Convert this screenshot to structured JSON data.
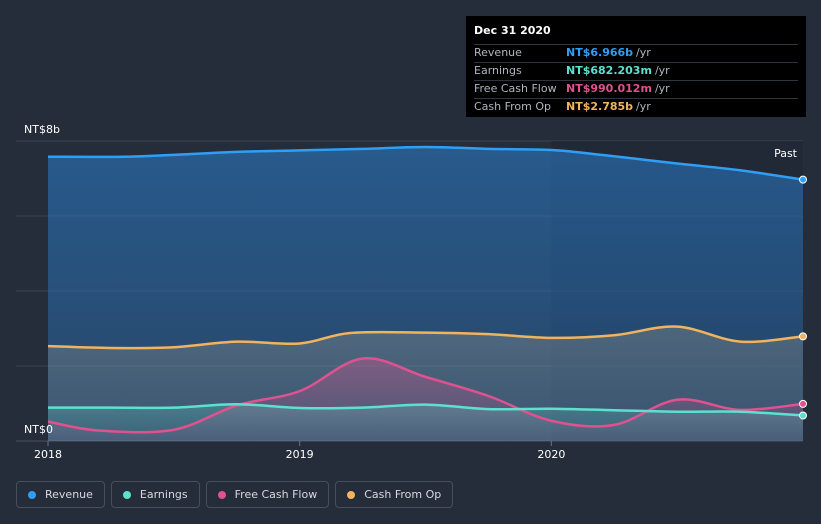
{
  "tooltip": {
    "date": "Dec 31 2020",
    "rows": [
      {
        "label": "Revenue",
        "value": "NT$6.966b",
        "unit": "/yr",
        "color": "#2f9ff5"
      },
      {
        "label": "Earnings",
        "value": "NT$682.203m",
        "unit": "/yr",
        "color": "#5ce1cf"
      },
      {
        "label": "Free Cash Flow",
        "value": "NT$990.012m",
        "unit": "/yr",
        "color": "#e0528f"
      },
      {
        "label": "Cash From Op",
        "value": "NT$2.785b",
        "unit": "/yr",
        "color": "#f0b35e"
      }
    ]
  },
  "legend": [
    {
      "label": "Revenue",
      "color": "#2f9ff5"
    },
    {
      "label": "Earnings",
      "color": "#5ce1cf"
    },
    {
      "label": "Free Cash Flow",
      "color": "#e0528f"
    },
    {
      "label": "Cash From Op",
      "color": "#f0b35e"
    }
  ],
  "chart_data": {
    "type": "area",
    "y_top_label": "NT$8b",
    "y_bottom_label": "NT$0",
    "past_label": "Past",
    "ylim": [
      0,
      8
    ],
    "xlim": [
      2018.0,
      2021.0
    ],
    "x_ticks": [
      2018,
      2019,
      2020
    ],
    "x_tick_labels": [
      "2018",
      "2019",
      "2020"
    ],
    "highlight_start": 2020.0,
    "series": [
      {
        "name": "Revenue",
        "color": "#2f9ff5",
        "x": [
          2018.0,
          2018.3,
          2018.5,
          2018.75,
          2019.0,
          2019.25,
          2019.5,
          2019.75,
          2020.0,
          2020.2,
          2020.5,
          2020.75,
          2021.0
        ],
        "y": [
          7.58,
          7.58,
          7.63,
          7.71,
          7.75,
          7.79,
          7.84,
          7.79,
          7.76,
          7.63,
          7.4,
          7.22,
          6.97
        ]
      },
      {
        "name": "Cash From Op",
        "color": "#f0b35e",
        "x": [
          2018.0,
          2018.25,
          2018.5,
          2018.75,
          2019.0,
          2019.2,
          2019.5,
          2019.75,
          2020.0,
          2020.25,
          2020.5,
          2020.75,
          2021.0
        ],
        "y": [
          2.53,
          2.48,
          2.5,
          2.65,
          2.6,
          2.88,
          2.89,
          2.85,
          2.75,
          2.82,
          3.05,
          2.65,
          2.79
        ]
      },
      {
        "name": "Free Cash Flow",
        "color": "#e0528f",
        "x": [
          2018.0,
          2018.2,
          2018.5,
          2018.75,
          2019.0,
          2019.25,
          2019.5,
          2019.75,
          2020.0,
          2020.25,
          2020.5,
          2020.75,
          2021.0
        ],
        "y": [
          0.52,
          0.28,
          0.3,
          0.95,
          1.33,
          2.2,
          1.71,
          1.2,
          0.54,
          0.43,
          1.1,
          0.83,
          0.99
        ]
      },
      {
        "name": "Earnings",
        "color": "#5ce1cf",
        "x": [
          2018.0,
          2018.25,
          2018.5,
          2018.75,
          2019.0,
          2019.25,
          2019.5,
          2019.75,
          2020.0,
          2020.25,
          2020.5,
          2020.75,
          2021.0
        ],
        "y": [
          0.89,
          0.89,
          0.89,
          0.98,
          0.88,
          0.89,
          0.97,
          0.85,
          0.86,
          0.82,
          0.78,
          0.78,
          0.68
        ]
      }
    ]
  }
}
